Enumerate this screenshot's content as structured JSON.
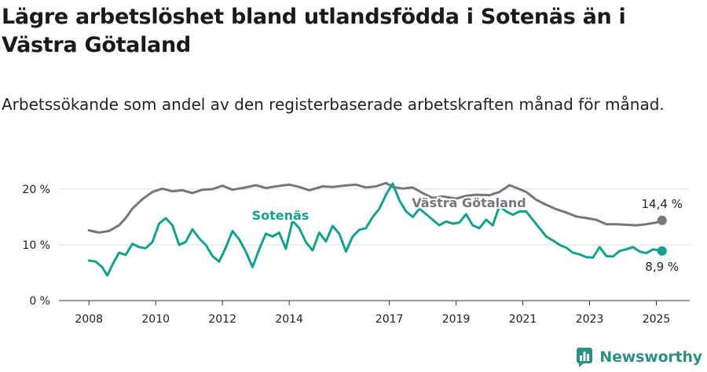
{
  "header": {
    "title": "Lägre arbetslöshet bland utlandsfödda i Sotenäs än i Västra Götaland",
    "subtitle": "Arbetssökande som andel av den registerbaserade arbetskraften månad för månad."
  },
  "brand": {
    "name": "Newsworthy",
    "icon": "newsworthy-logo-icon",
    "color": "#2f8f83"
  },
  "chart_data": {
    "type": "line",
    "x_ticks": [
      "2008",
      "2010",
      "2012",
      "2014",
      "2017",
      "2019",
      "2021",
      "2023",
      "2025"
    ],
    "x_tick_values": [
      2008,
      2010,
      2012,
      2014,
      2017,
      2019,
      2021,
      2023,
      2025
    ],
    "xlim": [
      2007.1,
      2026.0
    ],
    "y_ticks": [
      "0 %",
      "10 %",
      "20 %"
    ],
    "y_tick_values": [
      0,
      10,
      20
    ],
    "ylim": [
      0,
      22
    ],
    "grid": "horizontal",
    "series": [
      {
        "name": "Västra Götaland",
        "color": "#77767b",
        "end_label": "14,4 %",
        "x": [
          2008.0,
          2008.3,
          2008.6,
          2008.9,
          2009.1,
          2009.3,
          2009.6,
          2009.9,
          2010.2,
          2010.5,
          2010.8,
          2011.1,
          2011.4,
          2011.7,
          2012.0,
          2012.3,
          2012.6,
          2013.0,
          2013.3,
          2013.6,
          2014.0,
          2014.3,
          2014.6,
          2015.0,
          2015.3,
          2015.6,
          2016.0,
          2016.3,
          2016.6,
          2016.9,
          2017.1,
          2017.4,
          2017.7,
          2018.0,
          2018.3,
          2018.6,
          2019.0,
          2019.3,
          2019.6,
          2020.0,
          2020.3,
          2020.6,
          2020.9,
          2021.1,
          2021.4,
          2021.7,
          2022.0,
          2022.3,
          2022.6,
          2022.9,
          2023.2,
          2023.5,
          2023.8,
          2024.1,
          2024.4,
          2024.7,
          2025.0,
          2025.17
        ],
        "values": [
          12.6,
          12.2,
          12.5,
          13.5,
          14.8,
          16.5,
          18.2,
          19.5,
          20.1,
          19.6,
          19.8,
          19.3,
          19.9,
          20.0,
          20.6,
          19.9,
          20.2,
          20.7,
          20.2,
          20.5,
          20.8,
          20.4,
          19.8,
          20.5,
          20.4,
          20.6,
          20.8,
          20.3,
          20.5,
          21.1,
          20.4,
          20.1,
          20.3,
          19.3,
          18.4,
          18.7,
          18.3,
          18.8,
          19.0,
          18.9,
          19.5,
          20.7,
          20.0,
          19.5,
          18.1,
          17.2,
          16.4,
          15.8,
          15.1,
          14.8,
          14.5,
          13.7,
          13.7,
          13.6,
          13.5,
          13.7,
          14.0,
          14.4
        ]
      },
      {
        "name": "Sotenäs",
        "color": "#12a08f",
        "end_label": "8,9 %",
        "x": [
          2008.0,
          2008.2,
          2008.4,
          2008.55,
          2008.7,
          2008.9,
          2009.1,
          2009.3,
          2009.5,
          2009.7,
          2009.9,
          2010.1,
          2010.3,
          2010.5,
          2010.7,
          2010.9,
          2011.1,
          2011.3,
          2011.5,
          2011.7,
          2011.9,
          2012.1,
          2012.3,
          2012.5,
          2012.7,
          2012.9,
          2013.1,
          2013.3,
          2013.5,
          2013.7,
          2013.9,
          2014.1,
          2014.3,
          2014.5,
          2014.7,
          2014.9,
          2015.1,
          2015.3,
          2015.5,
          2015.7,
          2015.9,
          2016.1,
          2016.3,
          2016.5,
          2016.7,
          2016.9,
          2017.1,
          2017.3,
          2017.5,
          2017.7,
          2017.9,
          2018.1,
          2018.3,
          2018.5,
          2018.7,
          2018.9,
          2019.1,
          2019.3,
          2019.5,
          2019.7,
          2019.9,
          2020.1,
          2020.3,
          2020.5,
          2020.7,
          2020.9,
          2021.1,
          2021.3,
          2021.5,
          2021.7,
          2021.9,
          2022.1,
          2022.3,
          2022.5,
          2022.7,
          2022.9,
          2023.1,
          2023.3,
          2023.5,
          2023.7,
          2023.9,
          2024.1,
          2024.3,
          2024.5,
          2024.7,
          2024.9,
          2025.17
        ],
        "values": [
          7.2,
          7.0,
          6.0,
          4.5,
          6.4,
          8.6,
          8.2,
          10.2,
          9.6,
          9.4,
          10.5,
          13.8,
          14.8,
          13.5,
          10.0,
          10.5,
          12.8,
          11.2,
          10.0,
          8.0,
          7.0,
          9.5,
          12.5,
          11.0,
          8.8,
          6.0,
          9.2,
          12.0,
          11.5,
          12.2,
          9.3,
          14.3,
          13.0,
          10.5,
          9.0,
          12.2,
          10.6,
          13.4,
          12.0,
          8.8,
          11.5,
          12.7,
          13.0,
          15.0,
          16.5,
          19.0,
          21.0,
          18.0,
          16.0,
          15.0,
          16.5,
          15.5,
          14.5,
          13.5,
          14.2,
          13.8,
          14.0,
          15.5,
          13.5,
          13.0,
          14.5,
          13.5,
          17.0,
          16.0,
          15.4,
          16.0,
          16.0,
          14.5,
          13.0,
          11.5,
          10.8,
          10.0,
          9.5,
          8.6,
          8.3,
          7.8,
          7.7,
          9.6,
          8.0,
          7.9,
          8.9,
          9.2,
          9.6,
          8.8,
          8.5,
          9.2,
          8.9
        ]
      }
    ]
  }
}
